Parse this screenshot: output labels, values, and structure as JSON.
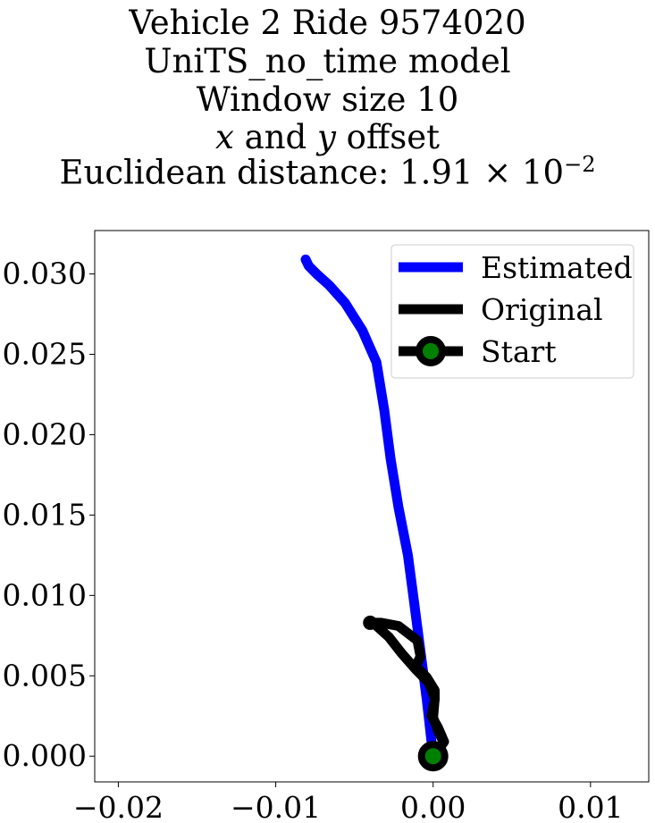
{
  "chart_data": {
    "type": "line",
    "title_lines": [
      "Vehicle 2 Ride 9574020",
      "UniTS_no_time model",
      "Window size 10"
    ],
    "title_offset_line": {
      "x": "x",
      "and": " and ",
      "y": "y",
      "rest": " offset"
    },
    "title_distance": {
      "prefix": "Euclidean distance: 1.91 × 10",
      "exponent": "−2"
    },
    "xlim": [
      -0.0215,
      0.0137
    ],
    "ylim": [
      -0.0016,
      0.0327
    ],
    "xticks": [
      -0.02,
      -0.01,
      0.0,
      0.01
    ],
    "xtick_labels": [
      "−0.02",
      "−0.01",
      "0.00",
      "0.01"
    ],
    "yticks": [
      0.0,
      0.005,
      0.01,
      0.015,
      0.02,
      0.025,
      0.03
    ],
    "ytick_labels": [
      "0.000",
      "0.005",
      "0.010",
      "0.015",
      "0.020",
      "0.025",
      "0.030"
    ],
    "grid": false,
    "legend_position": "top-right",
    "series": [
      {
        "name": "Estimated",
        "color": "#0000ff",
        "points": [
          [
            0.0,
            0.0
          ],
          [
            -0.0004,
            0.0035
          ],
          [
            -0.0008,
            0.0065
          ],
          [
            -0.0012,
            0.0095
          ],
          [
            -0.0016,
            0.0125
          ],
          [
            -0.0022,
            0.0155
          ],
          [
            -0.0027,
            0.0185
          ],
          [
            -0.0031,
            0.0215
          ],
          [
            -0.0036,
            0.0245
          ],
          [
            -0.0045,
            0.0265
          ],
          [
            -0.0056,
            0.0282
          ],
          [
            -0.0066,
            0.0293
          ],
          [
            -0.0074,
            0.03
          ],
          [
            -0.0079,
            0.0305
          ],
          [
            -0.0081,
            0.0309
          ]
        ]
      },
      {
        "name": "Original",
        "color": "#000000",
        "points": [
          [
            0.0,
            0.0
          ],
          [
            0.0004,
            0.0005
          ],
          [
            0.0007,
            0.0009
          ],
          [
            0.0003,
            0.0018
          ],
          [
            -0.0001,
            0.0025
          ],
          [
            0.0001,
            0.0035
          ],
          [
            0.0001,
            0.0041
          ],
          [
            -0.0004,
            0.0049
          ],
          [
            -0.0011,
            0.0056
          ],
          [
            -0.0008,
            0.0062
          ],
          [
            -0.001,
            0.0072
          ],
          [
            -0.0022,
            0.0081
          ],
          [
            -0.0033,
            0.0083
          ],
          [
            -0.004,
            0.0083
          ],
          [
            -0.0037,
            0.0082
          ],
          [
            -0.0028,
            0.0074
          ],
          [
            -0.002,
            0.0064
          ],
          [
            -0.0011,
            0.0054
          ],
          [
            -0.0003,
            0.0046
          ],
          [
            0.0001,
            0.0036
          ],
          [
            0.0,
            0.0024
          ],
          [
            0.0003,
            0.0016
          ],
          [
            0.0006,
            0.001
          ]
        ]
      },
      {
        "name": "Start",
        "color": "#000000",
        "marker_face": "#008000",
        "points": [
          [
            0.0,
            0.0
          ]
        ]
      }
    ]
  }
}
